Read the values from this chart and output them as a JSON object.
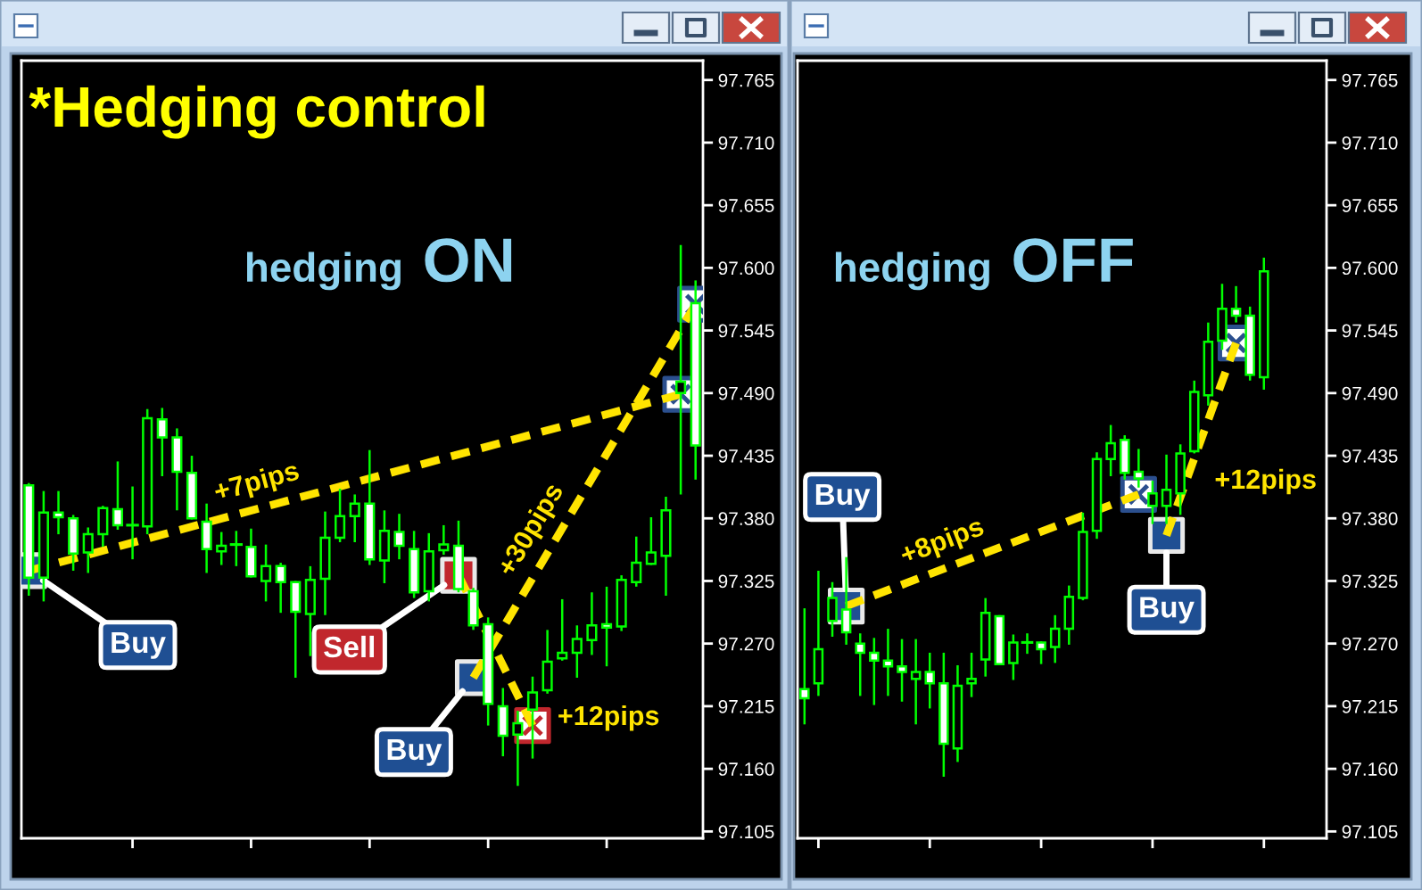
{
  "chart_data": [
    {
      "type": "candlestick",
      "title": "hedging ON",
      "annotations": [
        "*Hedging control"
      ],
      "categories": [
        null,
        null,
        null,
        null,
        null,
        null,
        null,
        null,
        null,
        null,
        null,
        null,
        null,
        null,
        null,
        null,
        null,
        null,
        null,
        null,
        null,
        null,
        null,
        null,
        null,
        null,
        null,
        null,
        null,
        null,
        null,
        null,
        null,
        null,
        null,
        null,
        null,
        null,
        null,
        null,
        null,
        null,
        null,
        null,
        null,
        null
      ],
      "ohlc": [
        [
          97.409,
          97.41,
          97.313,
          97.328
        ],
        [
          97.328,
          97.403,
          97.308,
          97.385
        ],
        [
          97.385,
          97.403,
          97.367,
          97.381
        ],
        [
          97.38,
          97.382,
          97.335,
          97.349
        ],
        [
          97.35,
          97.371,
          97.333,
          97.366
        ],
        [
          97.366,
          97.39,
          97.356,
          97.389
        ],
        [
          97.388,
          97.429,
          97.371,
          97.374
        ],
        [
          97.374,
          97.407,
          97.345,
          97.374
        ],
        [
          97.373,
          97.475,
          97.367,
          97.468
        ],
        [
          97.467,
          97.476,
          97.418,
          97.451
        ],
        [
          97.451,
          97.458,
          97.388,
          97.421
        ],
        [
          97.42,
          97.434,
          97.38,
          97.38
        ],
        [
          97.377,
          97.392,
          97.333,
          97.353
        ],
        [
          97.351,
          97.367,
          97.34,
          97.356
        ],
        [
          97.357,
          97.368,
          97.339,
          97.357
        ],
        [
          97.355,
          97.37,
          97.329,
          97.329
        ],
        [
          97.325,
          97.356,
          97.308,
          97.338
        ],
        [
          97.338,
          97.34,
          97.298,
          97.324
        ],
        [
          97.324,
          97.324,
          97.241,
          97.298
        ],
        [
          97.296,
          97.337,
          97.26,
          97.326
        ],
        [
          97.327,
          97.385,
          97.296,
          97.363
        ],
        [
          97.363,
          97.405,
          97.36,
          97.382
        ],
        [
          97.382,
          97.4,
          97.36,
          97.393
        ],
        [
          97.393,
          97.439,
          97.34,
          97.344
        ],
        [
          97.343,
          97.386,
          97.324,
          97.369
        ],
        [
          97.368,
          97.383,
          97.345,
          97.356
        ],
        [
          97.353,
          97.368,
          97.311,
          97.315
        ],
        [
          97.316,
          97.366,
          97.308,
          97.351
        ],
        [
          97.352,
          97.373,
          97.349,
          97.357
        ],
        [
          97.356,
          97.377,
          97.316,
          97.318
        ],
        [
          97.316,
          97.318,
          97.283,
          97.286
        ],
        [
          97.287,
          97.292,
          97.199,
          97.217
        ],
        [
          97.215,
          97.23,
          97.172,
          97.189
        ],
        [
          97.19,
          97.21,
          97.146,
          97.2
        ],
        [
          97.212,
          97.24,
          97.17,
          97.227
        ],
        [
          97.229,
          97.281,
          97.227,
          97.254
        ],
        [
          97.257,
          97.308,
          97.256,
          97.262
        ],
        [
          97.262,
          97.285,
          97.241,
          97.274
        ],
        [
          97.273,
          97.314,
          97.261,
          97.286
        ],
        [
          97.287,
          97.319,
          97.251,
          97.284
        ],
        [
          97.285,
          97.329,
          97.282,
          97.326
        ],
        [
          97.324,
          97.363,
          97.321,
          97.341
        ],
        [
          97.34,
          97.38,
          97.34,
          97.35
        ],
        [
          97.347,
          97.398,
          97.313,
          97.387
        ],
        [
          97.49,
          97.619,
          97.402,
          97.5
        ],
        [
          97.569,
          97.588,
          97.415,
          97.444
        ]
      ],
      "color": "#00ff00",
      "colors": [
        "#ffffff",
        "#000000",
        "#ffffff",
        "#ffffff",
        "#000000",
        "#000000",
        "#ffffff",
        "#00ff00",
        "#000000",
        "#ffffff",
        "#ffffff",
        "#ffffff",
        "#ffffff",
        "#000000",
        "#00ff00",
        "#ffffff",
        "#000000",
        "#ffffff",
        "#ffffff",
        "#000000",
        "#000000",
        "#000000",
        "#000000",
        "#ffffff",
        "#000000",
        "#ffffff",
        "#ffffff",
        "#000000",
        "#000000",
        "#ffffff",
        "#ffffff",
        "#ffffff",
        "#ffffff",
        "#000000",
        "#000000",
        "#000000",
        "#000000",
        "#000000",
        "#000000",
        "#ffffff",
        "#000000",
        "#000000",
        "#000000",
        "#000000",
        "#000000",
        "#ffffff"
      ],
      "series": [
        {
          "type": "line",
          "name": "+7pips",
          "color": "#ffe400",
          "line_style": "dashed",
          "values": [
            97.334,
            null,
            null,
            null,
            null,
            null,
            null,
            null,
            null,
            null,
            null,
            null,
            null,
            null,
            null,
            null,
            null,
            null,
            null,
            null,
            null,
            null,
            null,
            null,
            null,
            null,
            null,
            null,
            null,
            null,
            null,
            null,
            null,
            null,
            null,
            null,
            null,
            null,
            null,
            null,
            null,
            null,
            null,
            null,
            97.489,
            null
          ]
        },
        {
          "type": "line",
          "name": "+30pips",
          "color": "#ffe400",
          "line_style": "dashed",
          "values": [
            null,
            null,
            null,
            null,
            null,
            null,
            null,
            null,
            null,
            null,
            null,
            null,
            null,
            null,
            null,
            null,
            null,
            null,
            null,
            null,
            null,
            null,
            null,
            null,
            null,
            null,
            null,
            null,
            null,
            null,
            97.24,
            null,
            null,
            null,
            null,
            null,
            null,
            null,
            null,
            null,
            null,
            null,
            null,
            null,
            null,
            97.568
          ]
        },
        {
          "type": "line",
          "name": "+12pips",
          "color": "#ffe400",
          "line_style": "dashed",
          "values": [
            null,
            null,
            null,
            null,
            null,
            null,
            null,
            null,
            null,
            null,
            null,
            null,
            null,
            null,
            null,
            null,
            null,
            null,
            null,
            null,
            null,
            null,
            null,
            null,
            null,
            null,
            null,
            null,
            null,
            97.33,
            null,
            null,
            null,
            null,
            97.198,
            null,
            null,
            null,
            null,
            null,
            null,
            null,
            null,
            null,
            null,
            null
          ]
        },
        {
          "type": "scatter",
          "name": "Buy",
          "marker": "square",
          "color": "#1f4f93",
          "values": [
            97.334,
            null,
            null,
            null,
            null,
            null,
            null,
            null,
            null,
            null,
            null,
            null,
            null,
            null,
            null,
            null,
            null,
            null,
            null,
            null,
            null,
            null,
            null,
            null,
            null,
            null,
            null,
            null,
            null,
            null,
            97.24,
            null,
            null,
            null,
            null,
            null,
            null,
            null,
            null,
            null,
            null,
            null,
            null,
            null,
            null,
            null
          ]
        },
        {
          "type": "scatter",
          "name": "Sell",
          "marker": "square",
          "color": "#c1272d",
          "values": [
            null,
            null,
            null,
            null,
            null,
            null,
            null,
            null,
            null,
            null,
            null,
            null,
            null,
            null,
            null,
            null,
            null,
            null,
            null,
            null,
            null,
            null,
            null,
            null,
            null,
            null,
            null,
            null,
            null,
            97.33,
            null,
            null,
            null,
            null,
            null,
            null,
            null,
            null,
            null,
            null,
            null,
            null,
            null,
            null,
            null,
            null
          ]
        },
        {
          "type": "scatter",
          "marker": "cross",
          "color": "#2b4f8e",
          "values": [
            null,
            null,
            null,
            null,
            null,
            null,
            null,
            null,
            null,
            null,
            null,
            null,
            null,
            null,
            null,
            null,
            null,
            null,
            null,
            null,
            null,
            null,
            null,
            null,
            null,
            null,
            null,
            null,
            null,
            null,
            null,
            null,
            null,
            null,
            null,
            null,
            null,
            null,
            null,
            null,
            null,
            null,
            null,
            null,
            97.489,
            97.568
          ]
        },
        {
          "type": "scatter",
          "marker": "cross",
          "color": "#c1272d",
          "values": [
            null,
            null,
            null,
            null,
            null,
            null,
            null,
            null,
            null,
            null,
            null,
            null,
            null,
            null,
            null,
            null,
            null,
            null,
            null,
            null,
            null,
            null,
            null,
            null,
            null,
            null,
            null,
            null,
            null,
            null,
            null,
            null,
            null,
            null,
            97.198,
            null,
            null,
            null,
            null,
            null,
            null,
            null,
            null,
            null,
            null,
            null
          ]
        }
      ],
      "ylim": [
        97.099,
        97.782
      ],
      "yticks": [
        97.105,
        {
          "value": 97.16,
          "label": "97.160"
        },
        97.215,
        {
          "value": 97.27,
          "label": "97.270"
        },
        97.325,
        {
          "value": 97.38,
          "label": "97.380"
        },
        97.435,
        {
          "value": 97.49,
          "label": "97.490"
        },
        97.545,
        {
          "value": 97.6,
          "label": "97.600"
        },
        97.655,
        {
          "value": 97.71,
          "label": "97.710"
        },
        97.765
      ],
      "tick_labels": "y"
    },
    {
      "type": "candlestick",
      "title": "hedging OFF",
      "categories": [
        null,
        null,
        null,
        null,
        null,
        null,
        null,
        null,
        null,
        null,
        null,
        null,
        null,
        null,
        null,
        null,
        null,
        null,
        null,
        null,
        null,
        null,
        null,
        null,
        null,
        null,
        null,
        null,
        null,
        null,
        null,
        null,
        null,
        null,
        null,
        null,
        null,
        null
      ],
      "ohlc": [
        [
          97.23,
          97.3,
          97.2,
          97.222
        ],
        [
          97.235,
          97.333,
          97.225,
          97.265
        ],
        [
          97.29,
          97.323,
          97.277,
          97.31
        ],
        [
          97.3,
          97.345,
          97.27,
          97.28
        ],
        [
          97.27,
          97.278,
          97.225,
          97.262
        ],
        [
          97.262,
          97.274,
          97.217,
          97.255
        ],
        [
          97.255,
          97.282,
          97.225,
          97.25
        ],
        [
          97.25,
          97.273,
          97.22,
          97.245
        ],
        [
          97.239,
          97.273,
          97.2,
          97.245
        ],
        [
          97.245,
          97.261,
          97.214,
          97.235
        ],
        [
          97.235,
          97.261,
          97.154,
          97.182
        ],
        [
          97.178,
          97.25,
          97.167,
          97.233
        ],
        [
          97.235,
          97.261,
          97.224,
          97.239
        ],
        [
          97.256,
          97.309,
          97.242,
          97.297
        ],
        [
          97.294,
          97.294,
          97.252,
          97.252
        ],
        [
          97.253,
          97.277,
          97.239,
          97.271
        ],
        [
          97.271,
          97.278,
          97.262,
          97.271
        ],
        [
          97.271,
          97.271,
          97.253,
          97.265
        ],
        [
          97.267,
          97.294,
          97.254,
          97.283
        ],
        [
          97.283,
          97.32,
          97.27,
          97.311
        ],
        [
          97.31,
          97.384,
          97.309,
          97.368
        ],
        [
          97.369,
          97.437,
          97.363,
          97.432
        ],
        [
          97.432,
          97.461,
          97.418,
          97.446
        ],
        [
          97.449,
          97.452,
          97.415,
          97.42
        ],
        [
          97.421,
          97.44,
          97.408,
          97.415
        ],
        [
          97.391,
          97.412,
          97.376,
          97.402
        ],
        [
          97.391,
          97.435,
          97.376,
          97.405
        ],
        [
          97.402,
          97.444,
          97.384,
          97.437
        ],
        [
          97.439,
          97.5,
          97.438,
          97.491
        ],
        [
          97.488,
          97.551,
          97.48,
          97.535
        ],
        [
          97.536,
          97.585,
          97.529,
          97.564
        ],
        [
          97.564,
          97.583,
          97.553,
          97.558
        ],
        [
          97.558,
          97.565,
          97.502,
          97.506
        ],
        [
          97.504,
          97.608,
          97.494,
          97.597
        ],
        null,
        null,
        null,
        null
      ],
      "color": "#00ff00",
      "colors": [
        "#ffffff",
        "#000000",
        "#000000",
        "#ffffff",
        "#ffffff",
        "#ffffff",
        "#ffffff",
        "#ffffff",
        "#000000",
        "#ffffff",
        "#ffffff",
        "#000000",
        "#000000",
        "#000000",
        "#ffffff",
        "#000000",
        "#00ff00",
        "#ffffff",
        "#000000",
        "#000000",
        "#000000",
        "#000000",
        "#000000",
        "#ffffff",
        "#ffffff",
        "#000000",
        "#000000",
        "#000000",
        "#000000",
        "#000000",
        "#000000",
        "#ffffff",
        "#ffffff",
        "#000000",
        null,
        null,
        null,
        null
      ],
      "series": [
        {
          "type": "line",
          "name": "+8pips",
          "color": "#ffe400",
          "line_style": "dashed",
          "values": [
            null,
            null,
            null,
            97.303,
            null,
            null,
            null,
            null,
            null,
            null,
            null,
            null,
            null,
            null,
            null,
            null,
            null,
            null,
            null,
            null,
            null,
            null,
            null,
            null,
            97.401,
            null,
            null,
            null,
            null,
            null,
            null,
            null,
            null,
            null,
            null,
            null,
            null,
            null
          ]
        },
        {
          "type": "line",
          "name": "+12pips",
          "color": "#ffe400",
          "line_style": "dashed",
          "values": [
            null,
            null,
            null,
            null,
            null,
            null,
            null,
            null,
            null,
            null,
            null,
            null,
            null,
            null,
            null,
            null,
            null,
            null,
            null,
            null,
            null,
            null,
            null,
            null,
            null,
            null,
            97.365,
            null,
            null,
            null,
            null,
            97.534,
            null,
            null,
            null,
            null,
            null,
            null
          ]
        },
        {
          "type": "scatter",
          "name": "Buy",
          "marker": "square",
          "color": "#1f4f93",
          "values": [
            null,
            null,
            null,
            97.303,
            null,
            null,
            null,
            null,
            null,
            null,
            null,
            null,
            null,
            null,
            null,
            null,
            null,
            null,
            null,
            null,
            null,
            null,
            null,
            null,
            null,
            null,
            97.365,
            null,
            null,
            null,
            null,
            null,
            null,
            null,
            null,
            null,
            null,
            null
          ]
        },
        {
          "type": "scatter",
          "marker": "cross",
          "color": "#2b4f8e",
          "values": [
            null,
            null,
            null,
            null,
            null,
            null,
            null,
            null,
            null,
            null,
            null,
            null,
            null,
            null,
            null,
            null,
            null,
            null,
            null,
            null,
            null,
            null,
            null,
            null,
            97.401,
            null,
            null,
            null,
            null,
            null,
            null,
            97.534,
            null,
            null,
            null,
            null,
            null,
            null
          ]
        }
      ],
      "ylim": [
        97.099,
        97.782
      ],
      "yticks": [
        97.105,
        {
          "value": 97.16,
          "label": "97.160"
        },
        97.215,
        {
          "value": 97.27,
          "label": "97.270"
        },
        97.325,
        {
          "value": 97.38,
          "label": "97.380"
        },
        97.435,
        {
          "value": 97.49,
          "label": "97.490"
        },
        97.545,
        {
          "value": 97.6,
          "label": "97.600"
        },
        97.655,
        {
          "value": 97.71,
          "label": "97.710"
        },
        97.765
      ],
      "tick_labels": "y"
    }
  ]
}
